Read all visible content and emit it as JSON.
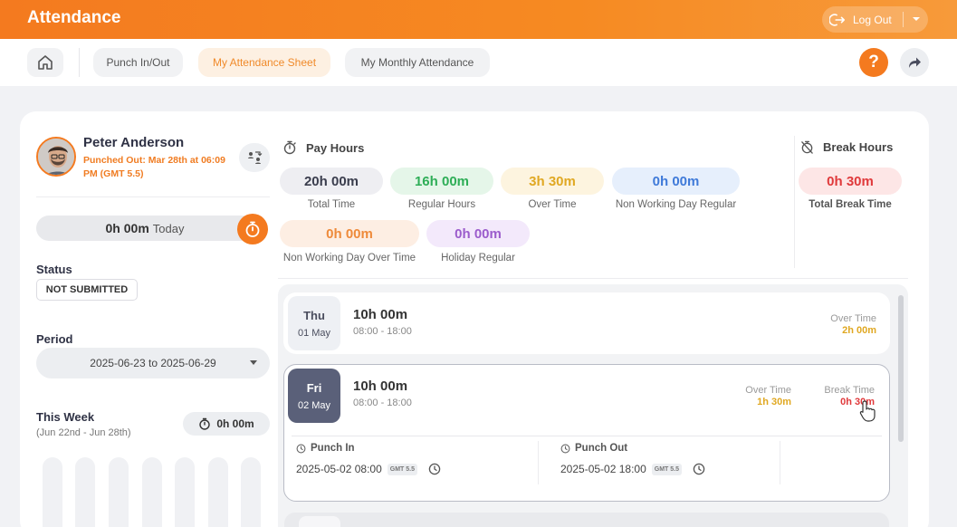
{
  "app": {
    "title": "Attendance",
    "logout_label": "Log Out"
  },
  "nav": {
    "tabs": [
      {
        "label": "Punch In/Out",
        "active": false
      },
      {
        "label": "My Attendance Sheet",
        "active": true
      },
      {
        "label": "My Monthly Attendance",
        "active": false
      }
    ],
    "help_label": "?"
  },
  "profile": {
    "name": "Peter Anderson",
    "punch_status": "Punched Out: Mar 28th at 06:09 PM (GMT 5.5)",
    "today_value": "0h 00m",
    "today_label": "Today"
  },
  "status": {
    "label": "Status",
    "value": "NOT SUBMITTED"
  },
  "period": {
    "label": "Period",
    "value": "2025-06-23 to 2025-06-29"
  },
  "week": {
    "label": "This Week",
    "range": "(Jun 22nd - Jun 28th)",
    "total": "0h 00m"
  },
  "pay_hours": {
    "title": "Pay Hours",
    "items": [
      {
        "value": "20h 00m",
        "label": "Total Time",
        "bg": "#eeeef2",
        "color": "#3a3d4d"
      },
      {
        "value": "16h 00m",
        "label": "Regular Hours",
        "bg": "#e5f6e9",
        "color": "#2eae57"
      },
      {
        "value": "3h 30m",
        "label": "Over Time",
        "bg": "#fdf4df",
        "color": "#e0a822"
      },
      {
        "value": "0h 00m",
        "label": "Non Working Day Regular",
        "bg": "#e6effc",
        "color": "#3f7ad9"
      },
      {
        "value": "0h 00m",
        "label": "Non Working Day Over Time",
        "bg": "#fdeee3",
        "color": "#ee8a3a"
      },
      {
        "value": "0h 00m",
        "label": "Holiday Regular",
        "bg": "#f3e9fb",
        "color": "#9b5ccc"
      }
    ]
  },
  "break_hours": {
    "title": "Break Hours",
    "value": "0h 30m",
    "label": "Total Break Time",
    "bg": "#fde6e6",
    "color": "#e0393b"
  },
  "days": [
    {
      "weekday": "Thu",
      "date": "01 May",
      "hours": "10h 00m",
      "range": "08:00 - 18:00",
      "ot_label": "Over Time",
      "ot_value": "2h 00m",
      "ot_color": "#e0a822"
    },
    {
      "weekday": "Fri",
      "date": "02 May",
      "hours": "10h 00m",
      "range": "08:00 - 18:00",
      "ot_label": "Over Time",
      "ot_value": "1h 30m",
      "ot_color": "#e0a822",
      "break_label": "Break Time",
      "break_value": "0h 30m",
      "break_color": "#e0393b",
      "punch_in": {
        "label": "Punch In",
        "value": "2025-05-02 08:00",
        "tz": "GMT 5.5"
      },
      "punch_out": {
        "label": "Punch Out",
        "value": "2025-05-02 18:00",
        "tz": "GMT 5.5"
      }
    }
  ],
  "colors": {
    "accent": "#f47a1f"
  }
}
